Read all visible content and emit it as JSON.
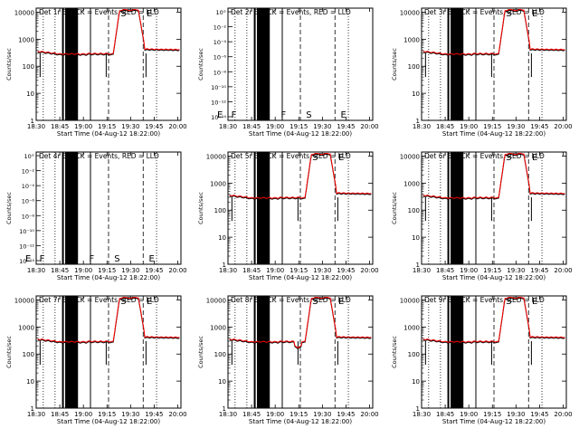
{
  "chart_data": {
    "type": "line",
    "layout": "3x3 grid",
    "x_axis": {
      "ticks": [
        "18:30",
        "18:45",
        "19:00",
        "19:15",
        "19:30",
        "19:45",
        "20:00"
      ],
      "label": "Start Time (04-Aug-12 18:22:00)",
      "range_min": [
        8,
        100
      ]
    },
    "y_axis_normal": {
      "label": "Counts/sec",
      "ticks": [
        "1",
        "10",
        "100",
        "1000",
        "10000"
      ],
      "range_log10": [
        0,
        4.15
      ]
    },
    "y_axis_empty": {
      "label": "Counts/sec",
      "ticks": [
        "10°",
        "10⁻²",
        "10⁻⁴",
        "10⁻⁶",
        "10⁻⁸",
        "10⁻¹⁰",
        "10⁻¹²",
        "10⁻¹⁴"
      ]
    },
    "segment_letters": [
      "E",
      "F",
      "FF",
      "F",
      "S",
      "E"
    ],
    "panel_S_label": "S",
    "panel_E_label": "E",
    "series_colors": {
      "events": "#000000",
      "lld": "#ff0000"
    },
    "panels": [
      {
        "title": "Det 1r BLACK = Events, RED = LLD",
        "has_data": true,
        "variant": "normal"
      },
      {
        "title": "Det 2r BLACK = Events, RED = LLD",
        "has_data": false,
        "variant": "empty"
      },
      {
        "title": "Det 3r BLACK = Events, RED = LLD",
        "has_data": true,
        "variant": "normal"
      },
      {
        "title": "Det 4r BLACK = Events, RED = LLD",
        "has_data": false,
        "variant": "empty"
      },
      {
        "title": "Det 5r BLACK = Events, RED = LLD",
        "has_data": true,
        "variant": "normal"
      },
      {
        "title": "Det 6r BLACK = Events, RED = LLD",
        "has_data": true,
        "variant": "normal"
      },
      {
        "title": "Det 7r BLACK = Events, RED = LLD",
        "has_data": true,
        "variant": "normal"
      },
      {
        "title": "Det 8r BLACK = Events, RED = LLD",
        "has_data": true,
        "variant": "dip"
      },
      {
        "title": "Det 9r BLACK = Events, RED = LLD",
        "has_data": true,
        "variant": "normal"
      }
    ],
    "vertical_markers_min": {
      "dotted": [
        12.5,
        20,
        84.5
      ],
      "solid": [
        25,
        27,
        28,
        29,
        30,
        31,
        32,
        33,
        34,
        42.5
      ],
      "dashed": [
        54,
        76
      ]
    },
    "series_shape": {
      "baseline_counts": 300,
      "peak_counts": 12000,
      "rise_start_min": 57,
      "rise_end_min": 61,
      "fall_start_min": 73,
      "fall_end_min": 77,
      "tail_counts": 300
    }
  }
}
